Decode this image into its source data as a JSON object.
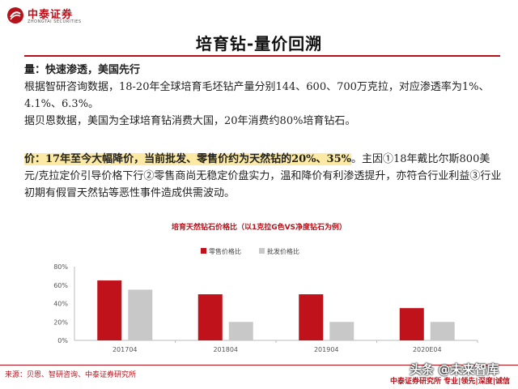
{
  "header": {
    "logo_cn": "中泰证券",
    "logo_en": "ZHONGTAI SECURITIES",
    "title": "培育钻-量价回溯"
  },
  "para1": {
    "heading": "量：快速渗透，美国先行",
    "line1": "根据智研咨询数据，18-20年全球培育毛坯钻产量分别144、600、700万克拉，对应渗透率为1%、4.1%、6.3%。",
    "line2": "据贝恩数据，美国为全球培育钻消费大国，20年消费约80%培育钻石。"
  },
  "para2": {
    "highlight": "价：17年至今大幅降价，当前批发、零售价约为天然钻的20%、35%",
    "rest": "。主因①18年戴比尔斯800美元/克拉定价引导价格下行②零售商尚无稳定价盘实力，温和降价有利渗透提升，亦符合行业利益③行业初期有假冒天然钻等恶性事件造成供需波动。"
  },
  "chart_data": {
    "type": "bar",
    "title": "培育天然钻石价格比（以1克拉G色VS净度钻石为例）",
    "categories": [
      "201704",
      "201804",
      "201904",
      "2020E04"
    ],
    "series": [
      {
        "name": "零售价格比",
        "values": [
          65,
          50,
          50,
          35
        ],
        "color": "#c0121b"
      },
      {
        "name": "批发价格比",
        "values": [
          55,
          20,
          20,
          20
        ],
        "color": "#c8c8c8"
      }
    ],
    "ylim": [
      0,
      80
    ],
    "yticks": [
      "0%",
      "20%",
      "40%",
      "60%",
      "80%"
    ],
    "legend_position": "top-right",
    "grid": false
  },
  "footer": {
    "source": "来源：贝恩、智研咨询、中泰证券研究所",
    "right": "中泰证券研究所 专业|领先|深度|诚信",
    "watermark": "头条 @未来智库"
  },
  "colors": {
    "accent": "#b5121b",
    "highlight": "#fbe9a4"
  }
}
